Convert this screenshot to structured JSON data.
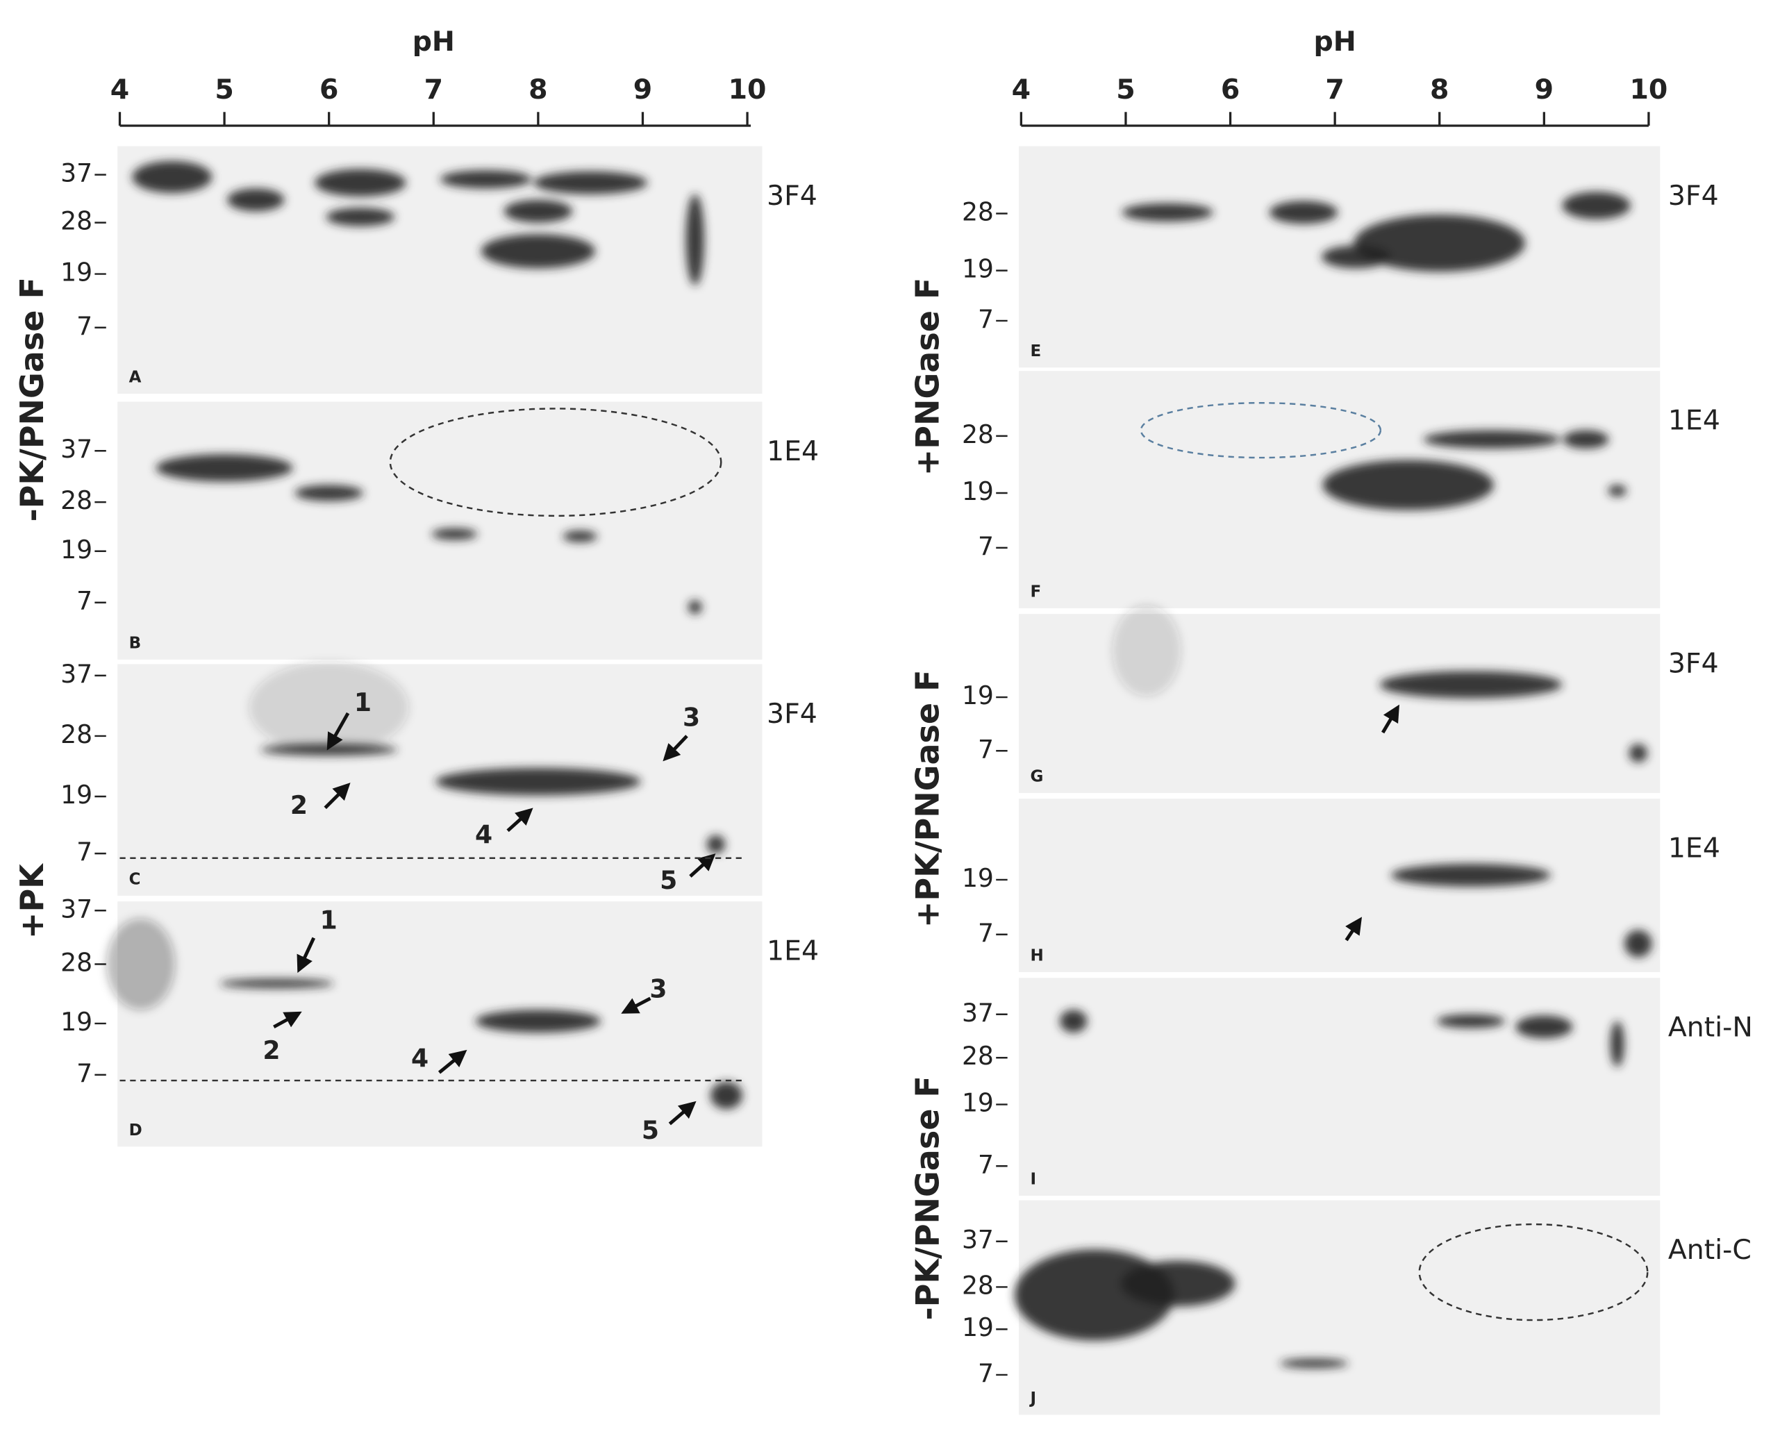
{
  "figure": {
    "left": {
      "axis_title": "pH",
      "ticks": [
        4,
        5,
        6,
        7,
        8,
        9,
        10
      ],
      "side_labels": [
        "-PK/PNGase F",
        "+PK"
      ],
      "panels": [
        {
          "letter": "A",
          "antibody": "3F4",
          "mw": [
            37,
            28,
            19,
            7
          ]
        },
        {
          "letter": "B",
          "antibody": "1E4",
          "mw": [
            37,
            28,
            19,
            7
          ]
        },
        {
          "letter": "C",
          "antibody": "3F4",
          "mw": [
            37,
            28,
            19,
            7
          ],
          "annotations": [
            "1",
            "2",
            "3",
            "4",
            "5"
          ]
        },
        {
          "letter": "D",
          "antibody": "1E4",
          "mw": [
            37,
            28,
            19,
            7
          ],
          "annotations": [
            "1",
            "2",
            "3",
            "4",
            "5"
          ]
        }
      ]
    },
    "right": {
      "axis_title": "pH",
      "ticks": [
        4,
        5,
        6,
        7,
        8,
        9,
        10
      ],
      "side_labels": [
        "+PNGase F",
        "+PK/PNGase F",
        "-PK/PNGase F"
      ],
      "panels": [
        {
          "letter": "E",
          "antibody": "3F4",
          "mw": [
            28,
            19,
            7
          ]
        },
        {
          "letter": "F",
          "antibody": "1E4",
          "mw": [
            28,
            19,
            7
          ]
        },
        {
          "letter": "G",
          "antibody": "3F4",
          "mw": [
            19,
            7
          ]
        },
        {
          "letter": "H",
          "antibody": "1E4",
          "mw": [
            19,
            7
          ]
        },
        {
          "letter": "I",
          "antibody": "Anti-N",
          "mw": [
            37,
            28,
            19,
            7
          ]
        },
        {
          "letter": "J",
          "antibody": "Anti-C",
          "mw": [
            37,
            28,
            19,
            7
          ]
        }
      ]
    }
  }
}
